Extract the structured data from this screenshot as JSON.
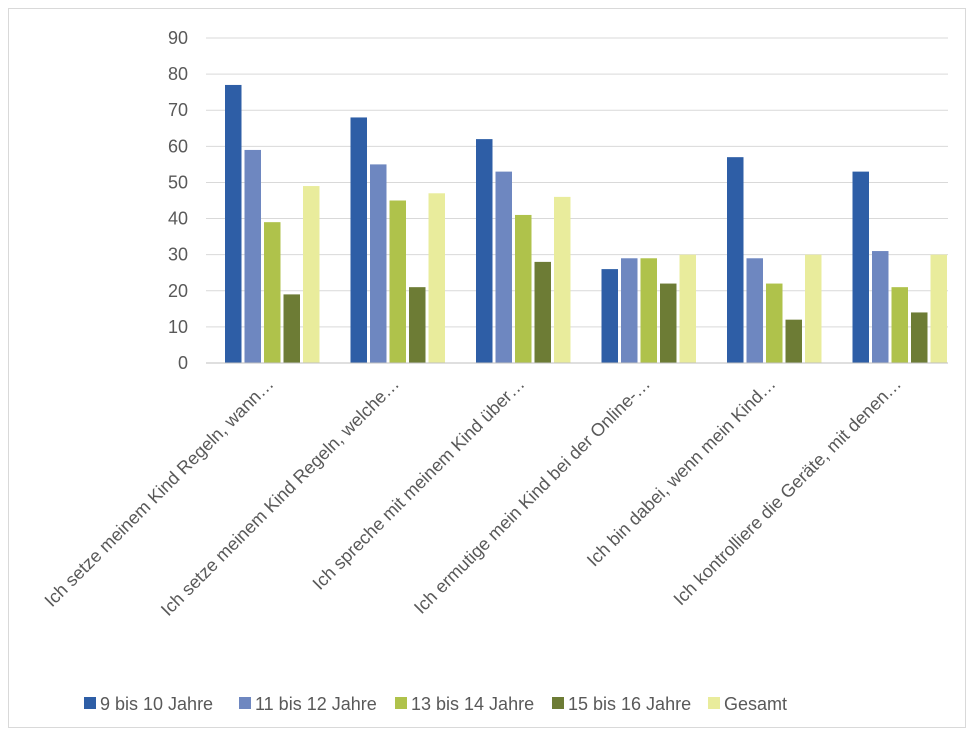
{
  "chart_data": {
    "type": "bar",
    "title": "",
    "xlabel": "",
    "ylabel": "",
    "ylim": [
      0,
      90
    ],
    "yticks": [
      0,
      10,
      20,
      30,
      40,
      50,
      60,
      70,
      80,
      90
    ],
    "grid": true,
    "legend_position": "bottom",
    "categories": [
      "Ich setze meinem Kind Regeln, wann…",
      "Ich setze meinem Kind Regeln, welche…",
      "Ich spreche mit meinem Kind über…",
      "Ich ermutige mein Kind bei der Online-…",
      "Ich bin dabei, wenn mein Kind…",
      "Ich kontrolliere die Geräte, mit denen…"
    ],
    "series": [
      {
        "name": "9 bis 10 Jahre",
        "color": "#2e5ea6",
        "values": [
          77,
          68,
          62,
          26,
          57,
          53
        ]
      },
      {
        "name": "11 bis 12 Jahre",
        "color": "#6e87c0",
        "values": [
          59,
          55,
          53,
          29,
          29,
          31
        ]
      },
      {
        "name": "13 bis 14 Jahre",
        "color": "#afc24b",
        "values": [
          39,
          45,
          41,
          29,
          22,
          21
        ]
      },
      {
        "name": "15 bis 16 Jahre",
        "color": "#6d7c35",
        "values": [
          19,
          21,
          28,
          22,
          12,
          14
        ]
      },
      {
        "name": "Gesamt",
        "color": "#e9ec9c",
        "values": [
          49,
          47,
          46,
          30,
          30,
          30
        ]
      }
    ]
  }
}
